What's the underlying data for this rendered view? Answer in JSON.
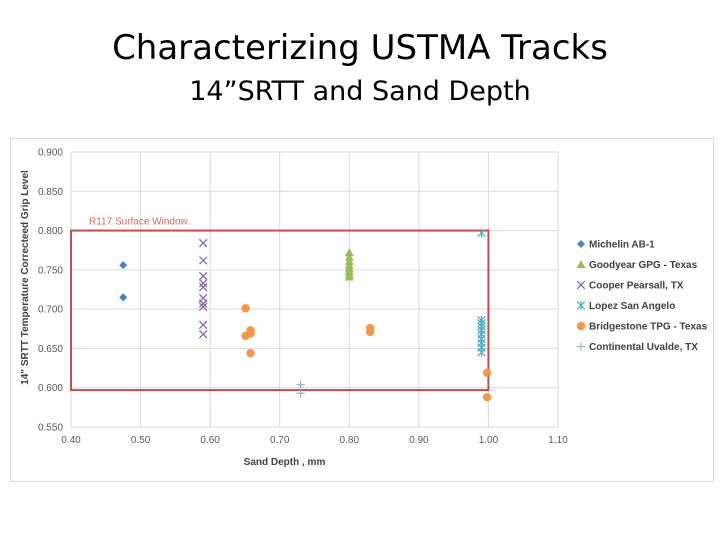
{
  "slide": {
    "title": "Characterizing USTMA Tracks",
    "subtitle": "14”SRTT and Sand Depth"
  },
  "chart_data": {
    "type": "scatter",
    "xlabel": "Sand Depth , mm",
    "ylabel": "14\" SRTT Temperature Correcteed Grip Level",
    "xlim": [
      0.4,
      1.1
    ],
    "ylim": [
      0.55,
      0.9
    ],
    "x_ticks": [
      "0.40",
      "0.50",
      "0.60",
      "0.70",
      "0.80",
      "0.90",
      "1.00",
      "1.10"
    ],
    "y_ticks": [
      "0.550",
      "0.600",
      "0.650",
      "0.700",
      "0.750",
      "0.800",
      "0.850",
      "0.900"
    ],
    "grid": true,
    "legend_position": "right",
    "annotation": {
      "label": "R117 Surface Window",
      "x_range": [
        0.4,
        1.0
      ],
      "y_range": [
        0.597,
        0.8
      ],
      "color": "#c0504d"
    },
    "series": [
      {
        "name": "Michelin AB-1",
        "marker": "diamond",
        "color": "#4f81bd",
        "points": [
          [
            0.475,
            0.756
          ],
          [
            0.475,
            0.715
          ]
        ]
      },
      {
        "name": "Goodyear GPG - Texas",
        "marker": "triangle",
        "color": "#9bbb59",
        "points": [
          [
            0.8,
            0.772
          ],
          [
            0.8,
            0.766
          ],
          [
            0.8,
            0.761
          ],
          [
            0.8,
            0.756
          ],
          [
            0.8,
            0.752
          ],
          [
            0.8,
            0.748
          ],
          [
            0.8,
            0.744
          ],
          [
            0.8,
            0.741
          ]
        ]
      },
      {
        "name": "Cooper Pearsall, TX",
        "marker": "x",
        "color": "#8064a2",
        "points": [
          [
            0.59,
            0.784
          ],
          [
            0.59,
            0.762
          ],
          [
            0.59,
            0.742
          ],
          [
            0.59,
            0.733
          ],
          [
            0.59,
            0.728
          ],
          [
            0.59,
            0.714
          ],
          [
            0.59,
            0.707
          ],
          [
            0.59,
            0.703
          ],
          [
            0.59,
            0.68
          ],
          [
            0.59,
            0.668
          ]
        ]
      },
      {
        "name": "Lopez San Angelo",
        "marker": "asterisk",
        "color": "#4bacc6",
        "points": [
          [
            0.99,
            0.797
          ],
          [
            0.99,
            0.686
          ],
          [
            0.99,
            0.682
          ],
          [
            0.99,
            0.678
          ],
          [
            0.99,
            0.673
          ],
          [
            0.99,
            0.668
          ],
          [
            0.99,
            0.662
          ],
          [
            0.99,
            0.657
          ],
          [
            0.99,
            0.651
          ],
          [
            0.99,
            0.645
          ]
        ]
      },
      {
        "name": "Bridgestone TPG - Texas",
        "marker": "circle",
        "color": "#f79646",
        "points": [
          [
            0.651,
            0.701
          ],
          [
            0.658,
            0.673
          ],
          [
            0.658,
            0.669
          ],
          [
            0.651,
            0.666
          ],
          [
            0.658,
            0.644
          ],
          [
            0.83,
            0.676
          ],
          [
            0.83,
            0.671
          ],
          [
            0.998,
            0.619
          ],
          [
            0.998,
            0.588
          ]
        ]
      },
      {
        "name": "Continental Uvalde, TX",
        "marker": "plus",
        "color": "#95b3d7",
        "points": [
          [
            0.73,
            0.604
          ],
          [
            0.73,
            0.593
          ]
        ]
      }
    ]
  }
}
